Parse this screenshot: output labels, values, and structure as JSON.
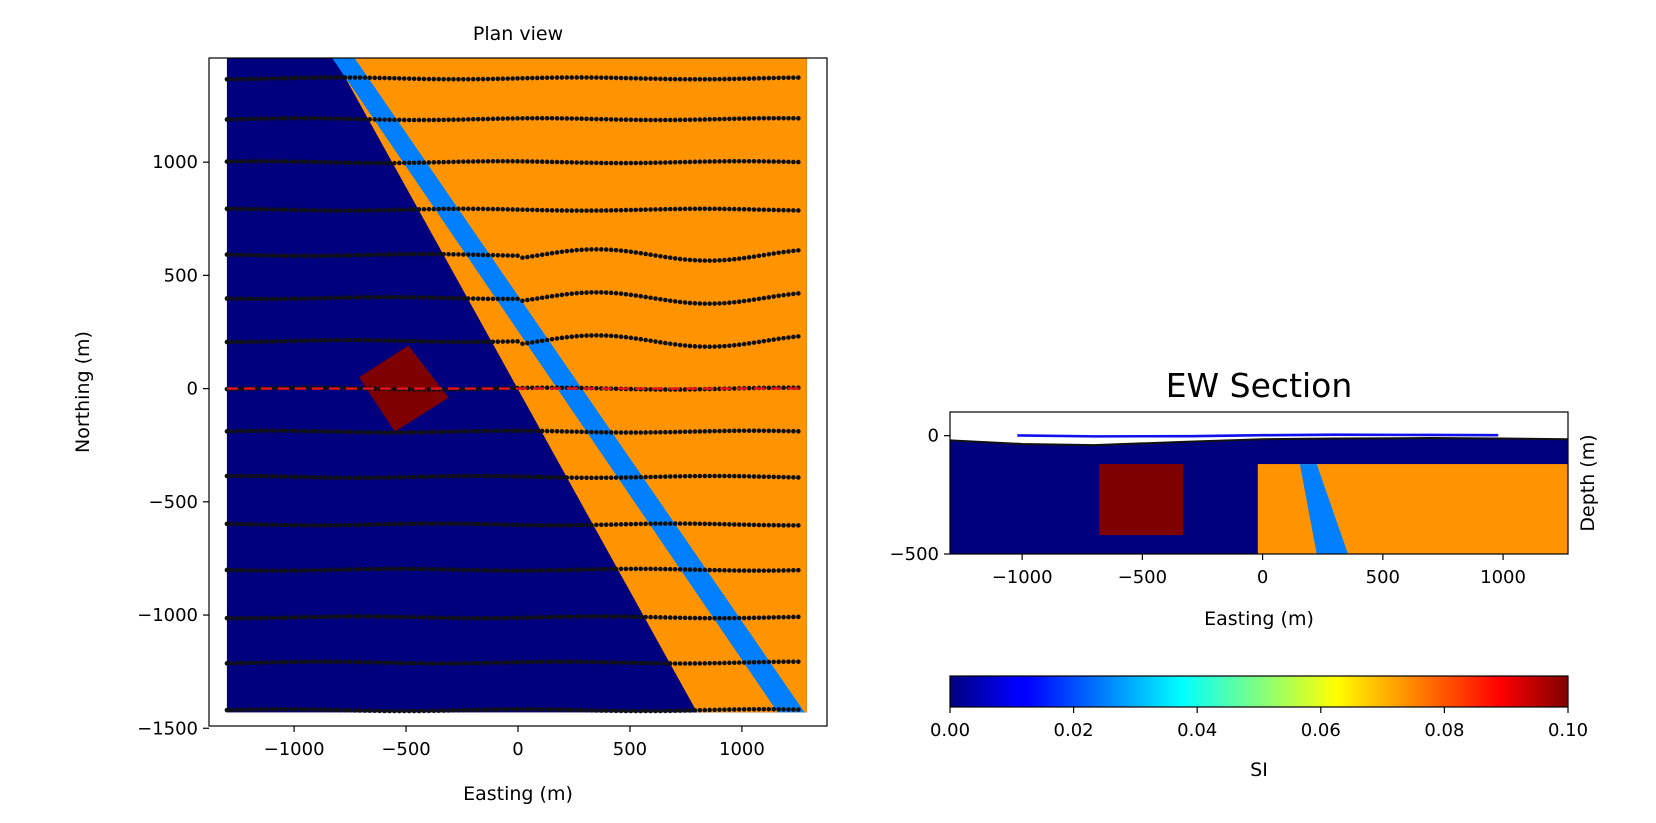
{
  "chart_data": [
    {
      "type": "heatmap",
      "title": "Plan view",
      "xlabel": "Easting (m)",
      "ylabel": "Northing (m)",
      "xlim": [
        -1380,
        1380
      ],
      "ylim": [
        -1490,
        1460
      ],
      "xticks": [
        -1000,
        -500,
        0,
        500,
        1000
      ],
      "xtick_labels": [
        "−1000",
        "−500",
        "0",
        "500",
        "1000"
      ],
      "yticks": [
        -1500,
        -1000,
        -500,
        0,
        500,
        1000
      ],
      "ytick_labels": [
        "−1500",
        "−1000",
        "−500",
        "0",
        "500",
        "1000"
      ],
      "colors": {
        "background_unit": "#00007f",
        "host_unit": "#ff9400",
        "dyke": "#0080ff",
        "block": "#7f0000",
        "stations": "#111111",
        "section_line": "#e8121b"
      },
      "units": [
        {
          "name": "background",
          "susceptibility_si": 0.0
        },
        {
          "name": "host",
          "susceptibility_si": 0.06
        },
        {
          "name": "dyke",
          "susceptibility_si": 0.025
        },
        {
          "name": "block",
          "susceptibility_si": 0.1
        }
      ],
      "geology": {
        "contact_polygon": [
          [
            -820,
            1460
          ],
          [
            800,
            -1430
          ],
          [
            1290,
            -1430
          ],
          [
            1290,
            1460
          ]
        ],
        "dyke_polygon": [
          [
            -830,
            1460
          ],
          [
            -730,
            1460
          ],
          [
            1280,
            -1430
          ],
          [
            1160,
            -1430
          ]
        ],
        "block_polygon": [
          [
            -710,
            50
          ],
          [
            -490,
            190
          ],
          [
            -310,
            -40
          ],
          [
            -550,
            -190
          ]
        ]
      },
      "survey_lines_northing": [
        1370,
        1190,
        1000,
        790,
        590,
        400,
        210,
        0,
        -190,
        -390,
        -600,
        -800,
        -1010,
        -1210,
        -1420
      ],
      "survey_lines_xrange": [
        -1300,
        1270
      ],
      "section_line": {
        "y": 0,
        "x": [
          -1300,
          1270
        ]
      }
    },
    {
      "type": "heatmap",
      "title": "EW Section",
      "xlabel": "Easting (m)",
      "ylabel": "Depth (m)",
      "xlim": [
        -1300,
        1270
      ],
      "ylim": [
        -500,
        100
      ],
      "xticks": [
        -1000,
        -500,
        0,
        500,
        1000
      ],
      "xtick_labels": [
        "−1000",
        "−500",
        "0",
        "500",
        "1000"
      ],
      "yticks": [
        -500,
        0
      ],
      "ytick_labels": [
        "−500",
        "0"
      ],
      "colors": {
        "background_unit": "#00007f",
        "host_unit": "#ff9400",
        "dyke": "#0080ff",
        "block": "#7f0000",
        "topography": "#111111",
        "flight_line": "#1010ee"
      },
      "topography": {
        "x": [
          -1300,
          -1000,
          -700,
          -300,
          0,
          300,
          700,
          1000,
          1270
        ],
        "z": [
          -20,
          -35,
          -40,
          -25,
          -15,
          -12,
          -10,
          -12,
          -15
        ]
      },
      "flight_line": {
        "x": [
          -1020,
          -700,
          -300,
          0,
          300,
          700,
          980
        ],
        "z": [
          1,
          -3,
          -2,
          2,
          4,
          3,
          2
        ]
      },
      "host_block": {
        "x": [
          -20,
          1270
        ],
        "z": [
          -500,
          -120
        ]
      },
      "dyke_polygon": [
        [
          155,
          -120
        ],
        [
          225,
          -120
        ],
        [
          355,
          -500
        ],
        [
          225,
          -500
        ]
      ],
      "magnetic_block": {
        "x": [
          -680,
          -330
        ],
        "z": [
          -420,
          -120
        ]
      }
    }
  ],
  "colorbar": {
    "label": "SI",
    "range": [
      0.0,
      0.1
    ],
    "ticks": [
      0.0,
      0.02,
      0.04,
      0.06,
      0.08,
      0.1
    ],
    "tick_labels": [
      "0.00",
      "0.02",
      "0.04",
      "0.06",
      "0.08",
      "0.10"
    ],
    "colormap": "jet"
  }
}
